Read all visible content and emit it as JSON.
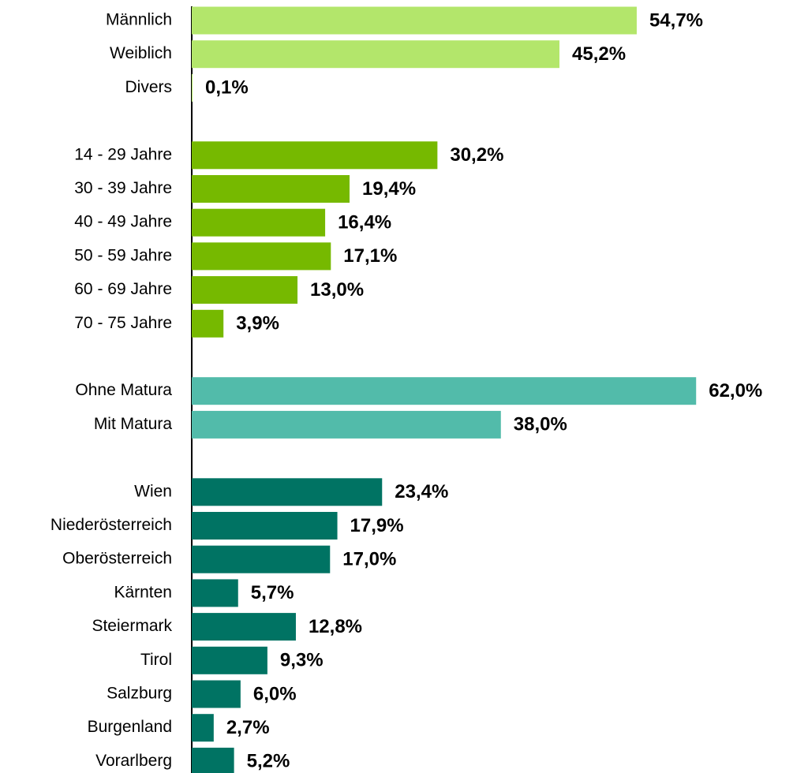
{
  "chart_data": [
    {
      "type": "bar",
      "color": "#b3e66b",
      "categories": [
        "Männlich",
        "Weiblich",
        "Divers"
      ],
      "values": [
        54.7,
        45.2,
        0.1
      ],
      "value_labels": [
        "54,7%",
        "45,2%",
        "0,1%"
      ]
    },
    {
      "type": "bar",
      "color": "#76b900",
      "categories": [
        "14 - 29 Jahre",
        "30 - 39 Jahre",
        "40 - 49 Jahre",
        "50 - 59 Jahre",
        "60 - 69 Jahre",
        "70 - 75 Jahre"
      ],
      "values": [
        30.2,
        19.4,
        16.4,
        17.1,
        13.0,
        3.9
      ],
      "value_labels": [
        "30,2%",
        "19,4%",
        "16,4%",
        "17,1%",
        "13,0%",
        "3,9%"
      ]
    },
    {
      "type": "bar",
      "color": "#52bbaa",
      "categories": [
        "Ohne Matura",
        "Mit Matura"
      ],
      "values": [
        62.0,
        38.0
      ],
      "value_labels": [
        "62,0%",
        "38,0%"
      ]
    },
    {
      "type": "bar",
      "color": "#007363",
      "categories": [
        "Wien",
        "Niederösterreich",
        "Oberösterreich",
        "Kärnten",
        "Steiermark",
        "Tirol",
        "Salzburg",
        "Burgenland",
        "Vorarlberg"
      ],
      "values": [
        23.4,
        17.9,
        17.0,
        5.7,
        12.8,
        9.3,
        6.0,
        2.7,
        5.2
      ],
      "value_labels": [
        "23,4%",
        "17,9%",
        "17,0%",
        "5,7%",
        "12,8%",
        "9,3%",
        "6,0%",
        "2,7%",
        "5,2%"
      ]
    }
  ]
}
